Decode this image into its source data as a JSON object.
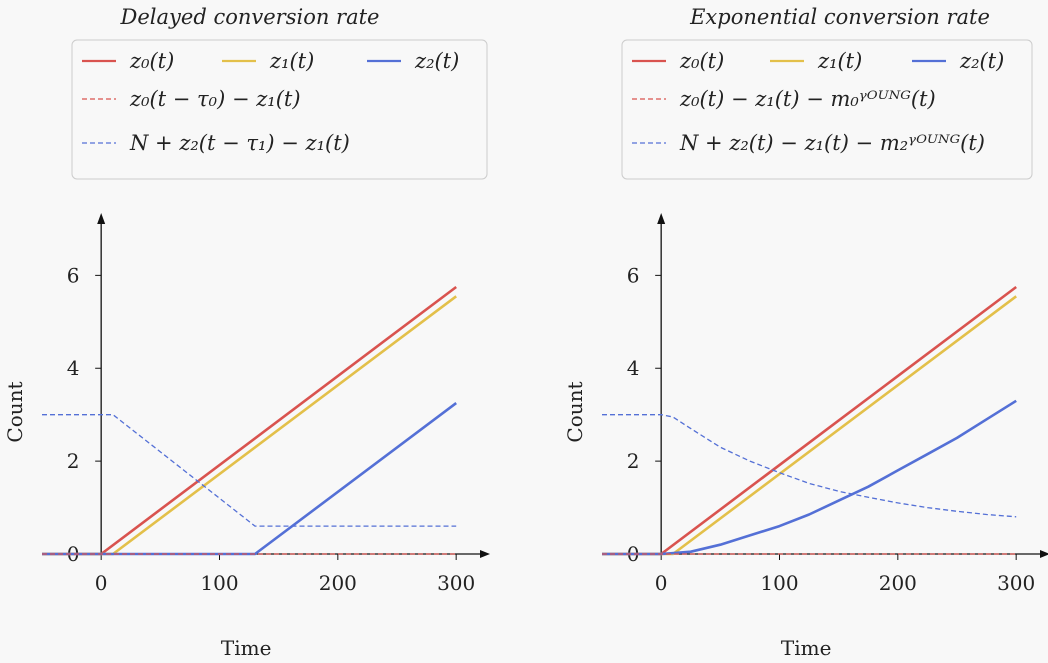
{
  "chart_data": [
    {
      "type": "line",
      "title": "Delayed conversion rate",
      "xlabel": "Time",
      "ylabel": "Count",
      "xticks": [
        "0",
        "100",
        "200",
        "300"
      ],
      "yticks": [
        "0",
        "2",
        "4",
        "6"
      ],
      "xlim": [
        -50,
        310
      ],
      "ylim": [
        0,
        7.3
      ],
      "legend": {
        "placement": "top",
        "entries": [
          {
            "label": "z₀(t)",
            "color": "#d9534f",
            "style": "solid"
          },
          {
            "label": "z₁(t)",
            "color": "#e3c04a",
            "style": "solid"
          },
          {
            "label": "z₂(t)",
            "color": "#5470d6",
            "style": "solid"
          },
          {
            "label": "z₀(t − τ₀) − z₁(t)",
            "color": "#d9534f",
            "style": "dashed"
          },
          {
            "label": "N + z₂(t − τ₁) − z₁(t)",
            "color": "#5470d6",
            "style": "dashed"
          }
        ]
      },
      "series": [
        {
          "color": "#d9534f",
          "style": "solid",
          "x": [
            -50,
            0,
            300
          ],
          "y": [
            0,
            0,
            5.75
          ]
        },
        {
          "color": "#e3c04a",
          "style": "solid",
          "x": [
            -50,
            10,
            300
          ],
          "y": [
            0,
            0,
            5.55
          ]
        },
        {
          "color": "#5470d6",
          "style": "solid",
          "x": [
            -50,
            130,
            300
          ],
          "y": [
            0,
            0,
            3.25
          ]
        },
        {
          "color": "#d9534f",
          "style": "dashed",
          "x": [
            -50,
            300
          ],
          "y": [
            0,
            0
          ]
        },
        {
          "color": "#5470d6",
          "style": "dashed",
          "x": [
            -50,
            10,
            130,
            300
          ],
          "y": [
            3,
            3,
            0.6,
            0.6
          ]
        }
      ]
    },
    {
      "type": "line",
      "title": "Exponential conversion rate",
      "xlabel": "Time",
      "ylabel": "Count",
      "xticks": [
        "0",
        "100",
        "200",
        "300"
      ],
      "yticks": [
        "0",
        "2",
        "4",
        "6"
      ],
      "xlim": [
        -50,
        310
      ],
      "ylim": [
        0,
        7.3
      ],
      "legend": {
        "placement": "top",
        "entries": [
          {
            "label": "z₀(t)",
            "color": "#d9534f",
            "style": "solid"
          },
          {
            "label": "z₁(t)",
            "color": "#e3c04a",
            "style": "solid"
          },
          {
            "label": "z₂(t)",
            "color": "#5470d6",
            "style": "solid"
          },
          {
            "label": "z₀(t) − z₁(t) − m₀ᵞᴼᵁᴺᴳ(t)",
            "color": "#d9534f",
            "style": "dashed"
          },
          {
            "label": "N + z₂(t) − z₁(t) − m₂ᵞᴼᵁᴺᴳ(t)",
            "color": "#5470d6",
            "style": "dashed"
          }
        ]
      },
      "series": [
        {
          "color": "#d9534f",
          "style": "solid",
          "x": [
            -50,
            0,
            300
          ],
          "y": [
            0,
            0,
            5.75
          ]
        },
        {
          "color": "#e3c04a",
          "style": "solid",
          "x": [
            -50,
            10,
            300
          ],
          "y": [
            0,
            0,
            5.55
          ]
        },
        {
          "color": "#5470d6",
          "style": "solid",
          "x": [
            -50,
            0,
            25,
            50,
            75,
            100,
            125,
            150,
            175,
            200,
            225,
            250,
            275,
            300
          ],
          "y": [
            0,
            0,
            0.05,
            0.2,
            0.4,
            0.6,
            0.85,
            1.15,
            1.45,
            1.8,
            2.15,
            2.5,
            2.9,
            3.3
          ]
        },
        {
          "color": "#d9534f",
          "style": "dashed",
          "x": [
            -50,
            300
          ],
          "y": [
            0,
            0
          ]
        },
        {
          "color": "#5470d6",
          "style": "dashed",
          "x": [
            -50,
            0,
            10,
            25,
            50,
            75,
            100,
            125,
            150,
            175,
            200,
            225,
            250,
            275,
            300
          ],
          "y": [
            3,
            3,
            2.95,
            2.7,
            2.3,
            2.0,
            1.75,
            1.52,
            1.35,
            1.22,
            1.1,
            1.0,
            0.92,
            0.85,
            0.8
          ]
        }
      ]
    }
  ]
}
